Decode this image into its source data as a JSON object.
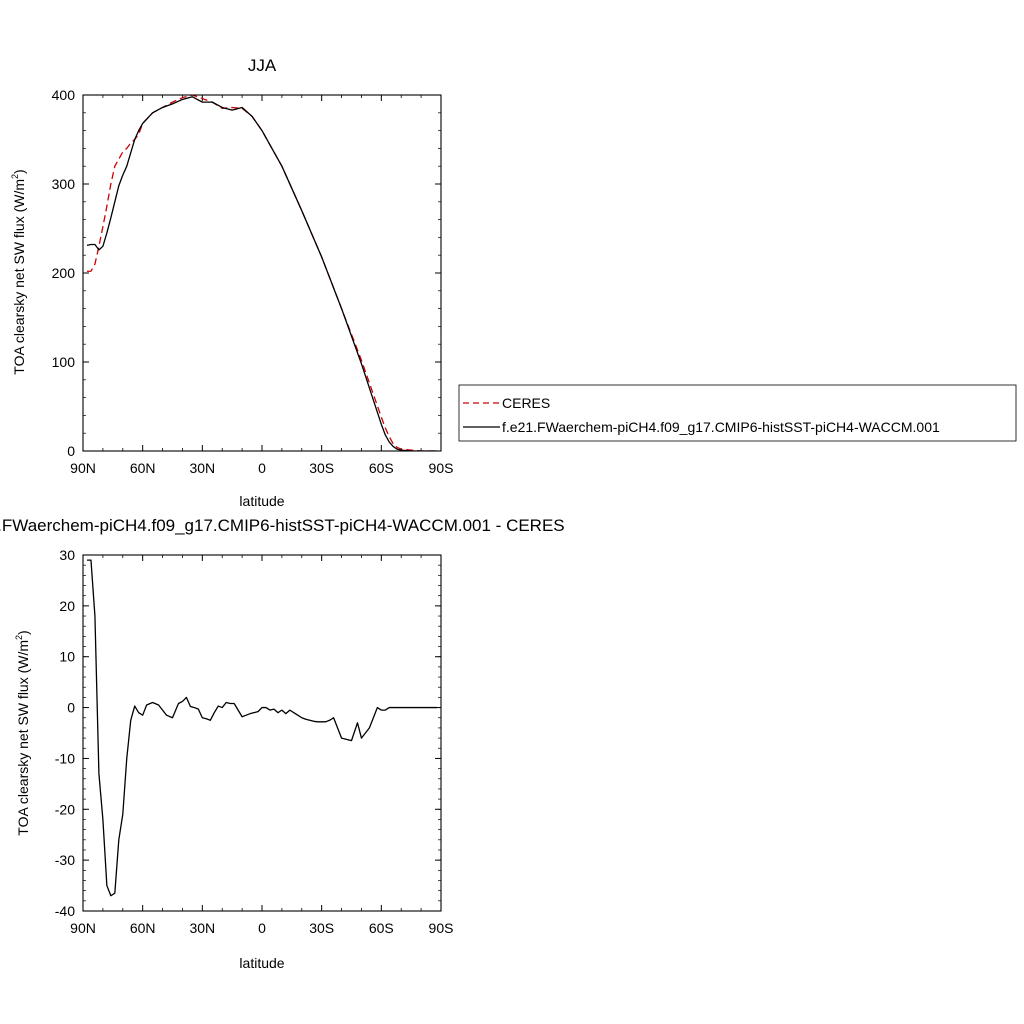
{
  "chart_data": [
    {
      "type": "line",
      "title": "JJA",
      "xlabel": "latitude",
      "ylabel_main": "TOA clearsky net SW flux (W/m",
      "ylabel_sup": "2",
      "ylabel_close": ")",
      "xlim": [
        90,
        -90
      ],
      "ylim": [
        0,
        400
      ],
      "xticks": [
        90,
        60,
        30,
        0,
        -30,
        -60,
        -90
      ],
      "xtick_labels": [
        "90N",
        "60N",
        "30N",
        "0",
        "30S",
        "60S",
        "90S"
      ],
      "yticks": [
        0,
        100,
        200,
        300,
        400
      ],
      "ytick_labels": [
        "0",
        "100",
        "200",
        "300",
        "400"
      ],
      "legend_position": "right",
      "series": [
        {
          "name": "CERES",
          "color": "#cc0000",
          "dash": "dashed",
          "x": [
            88,
            86,
            84,
            82,
            80,
            78,
            76,
            74,
            72,
            70,
            68,
            66,
            64,
            62,
            60,
            55,
            50,
            45,
            40,
            35,
            30,
            25,
            20,
            15,
            10,
            5,
            0,
            -5,
            -10,
            -20,
            -30,
            -40,
            -50,
            -55,
            -60,
            -62,
            -64,
            -66,
            -68,
            -70,
            -75,
            -80,
            -85,
            -88
          ],
          "y": [
            202,
            202,
            210,
            230,
            252,
            275,
            300,
            320,
            328,
            336,
            340,
            346,
            350,
            356,
            368,
            380,
            386,
            392,
            397,
            400,
            396,
            392,
            385,
            386,
            385,
            376,
            360,
            340,
            320,
            270,
            218,
            160,
            102,
            70,
            38,
            26,
            16,
            8,
            4,
            2,
            1,
            0,
            0,
            0
          ]
        },
        {
          "name": "f.e21.FWaerchem-piCH4.f09_g17.CMIP6-histSST-piCH4-WACCM.001",
          "color": "#000000",
          "dash": "solid",
          "x": [
            88,
            86,
            84,
            82,
            80,
            78,
            76,
            74,
            72,
            70,
            68,
            66,
            64,
            62,
            60,
            55,
            50,
            45,
            40,
            35,
            30,
            25,
            20,
            15,
            10,
            5,
            0,
            -5,
            -10,
            -20,
            -30,
            -40,
            -50,
            -55,
            -60,
            -62,
            -64,
            -66,
            -68,
            -70,
            -75,
            -80,
            -85,
            -88
          ],
          "y": [
            231,
            232,
            232,
            226,
            230,
            245,
            262,
            280,
            298,
            310,
            320,
            335,
            350,
            360,
            368,
            380,
            386,
            390,
            395,
            398,
            392,
            392,
            386,
            383,
            386,
            376,
            360,
            340,
            320,
            270,
            218,
            160,
            98,
            64,
            30,
            18,
            10,
            5,
            2,
            1,
            0,
            0,
            0,
            0
          ]
        }
      ]
    },
    {
      "type": "line",
      "title": "f.e21.FWaerchem-piCH4.f09_g17.CMIP6-histSST-piCH4-WACCM.001 - CERES",
      "xlabel": "latitude",
      "ylabel_main": "TOA clearsky net SW flux (W/m",
      "ylabel_sup": "2",
      "ylabel_close": ")",
      "xlim": [
        90,
        -90
      ],
      "ylim": [
        -40,
        30
      ],
      "xticks": [
        90,
        60,
        30,
        0,
        -30,
        -60,
        -90
      ],
      "xtick_labels": [
        "90N",
        "60N",
        "30N",
        "0",
        "30S",
        "60S",
        "90S"
      ],
      "yticks": [
        -40,
        -30,
        -20,
        -10,
        0,
        10,
        20,
        30
      ],
      "ytick_labels": [
        "-40",
        "-30",
        "-20",
        "-10",
        "0",
        "10",
        "20",
        "30"
      ],
      "series": [
        {
          "color": "#000000",
          "dash": "solid",
          "x": [
            88,
            86,
            84,
            82,
            80,
            78,
            76,
            74,
            72,
            70,
            68,
            66,
            64,
            62,
            60,
            58,
            55,
            52,
            50,
            48,
            45,
            42,
            40,
            38,
            36,
            34,
            32,
            30,
            28,
            26,
            24,
            22,
            20,
            18,
            16,
            14,
            12,
            10,
            8,
            6,
            4,
            2,
            0,
            -2,
            -4,
            -6,
            -8,
            -10,
            -12,
            -14,
            -16,
            -18,
            -20,
            -22,
            -24,
            -26,
            -28,
            -30,
            -32,
            -34,
            -36,
            -40,
            -45,
            -48,
            -50,
            -52,
            -54,
            -56,
            -58,
            -60,
            -62,
            -64,
            -66,
            -68,
            -70,
            -72,
            -74,
            -76,
            -80,
            -85,
            -88
          ],
          "y": [
            29,
            29,
            18,
            -13,
            -22,
            -35,
            -37,
            -36.5,
            -26,
            -21,
            -10,
            -2.5,
            0.3,
            -1,
            -1.5,
            0.5,
            1,
            0.5,
            -0.5,
            -1.5,
            -2,
            0.8,
            1.2,
            2,
            0.2,
            0,
            -0.3,
            -2,
            -2.2,
            -2.5,
            -1,
            0.3,
            0,
            1,
            0.8,
            0.8,
            -0.5,
            -1.8,
            -1.5,
            -1.2,
            -1,
            -0.8,
            0,
            0,
            -0.5,
            -0.3,
            -1,
            -0.5,
            -1.2,
            -0.5,
            -1,
            -1.5,
            -2,
            -2.3,
            -2.5,
            -2.7,
            -2.8,
            -2.8,
            -2.8,
            -2.5,
            -2,
            -6,
            -6.5,
            -3,
            -6,
            -5,
            -4,
            -2,
            0,
            -0.5,
            -0.5,
            0,
            0,
            0,
            0,
            0,
            0,
            0,
            0,
            0,
            0
          ]
        }
      ]
    }
  ]
}
